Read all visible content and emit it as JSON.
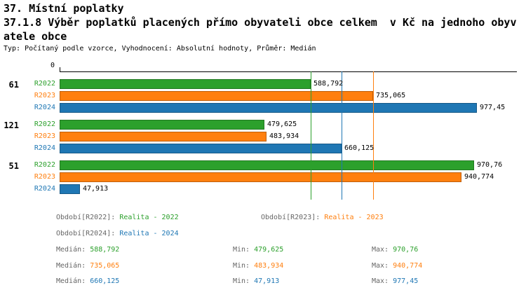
{
  "header": {
    "title_line1": "37. Místní poplatky",
    "title_line2": "37.1.8 Výběr poplatků placených přímo obyvateli obce celkem  v Kč na jednoho obyv",
    "title_line3": "atele obce",
    "subtitle": "Typ: Počítaný podle vzorce, Vyhodnocení: Absolutní hodnoty, Průměr: Medián"
  },
  "colors": {
    "green": "#2ca02c",
    "orange": "#ff7f0e",
    "blue": "#1f77b4",
    "label_gray": "#666666",
    "axis_black": "#000000"
  },
  "chart_data": {
    "type": "bar",
    "orientation": "horizontal",
    "x_axis": {
      "zero_label": "0",
      "min": 0,
      "max_value_shown": 977.45,
      "grid": false
    },
    "series": [
      {
        "name": "R2022",
        "color_key": "green",
        "median": 588.792
      },
      {
        "name": "R2023",
        "color_key": "orange",
        "median": 735.065
      },
      {
        "name": "R2024",
        "color_key": "blue",
        "median": 660.125
      }
    ],
    "groups": [
      {
        "label": "61",
        "values": [
          {
            "series": "R2022",
            "value": 588.792,
            "display": "588,792"
          },
          {
            "series": "R2023",
            "value": 735.065,
            "display": "735,065"
          },
          {
            "series": "R2024",
            "value": 977.45,
            "display": "977,45"
          }
        ]
      },
      {
        "label": "121",
        "values": [
          {
            "series": "R2022",
            "value": 479.625,
            "display": "479,625"
          },
          {
            "series": "R2023",
            "value": 483.934,
            "display": "483,934"
          },
          {
            "series": "R2024",
            "value": 660.125,
            "display": "660,125"
          }
        ]
      },
      {
        "label": "51",
        "values": [
          {
            "series": "R2022",
            "value": 970.76,
            "display": "970,76"
          },
          {
            "series": "R2023",
            "value": 940.774,
            "display": "940,774"
          },
          {
            "series": "R2024",
            "value": 47.913,
            "display": "47,913"
          }
        ]
      }
    ],
    "median_lines": [
      {
        "series": "R2022",
        "value": 588.792,
        "color_key": "green"
      },
      {
        "series": "R2024",
        "value": 660.125,
        "color_key": "blue"
      },
      {
        "series": "R2023",
        "value": 735.065,
        "color_key": "orange"
      }
    ]
  },
  "legend": {
    "entries": [
      {
        "label": "Období[R2022]:",
        "value": "Realita - 2022",
        "color_key": "green"
      },
      {
        "label": "Období[R2023]:",
        "value": "Realita - 2023",
        "color_key": "orange"
      },
      {
        "label": "Období[R2024]:",
        "value": "Realita - 2024",
        "color_key": "blue"
      }
    ]
  },
  "stats": {
    "rows": [
      {
        "color_key": "green",
        "median_label": "Medián:",
        "median_value": "588,792",
        "min_label": "Min:",
        "min_value": "479,625",
        "max_label": "Max:",
        "max_value": "970,76"
      },
      {
        "color_key": "orange",
        "median_label": "Medián:",
        "median_value": "735,065",
        "min_label": "Min:",
        "min_value": "483,934",
        "max_label": "Max:",
        "max_value": "940,774"
      },
      {
        "color_key": "blue",
        "median_label": "Medián:",
        "median_value": "660,125",
        "min_label": "Min:",
        "min_value": "47,913",
        "max_label": "Max:",
        "max_value": "977,45"
      }
    ]
  }
}
